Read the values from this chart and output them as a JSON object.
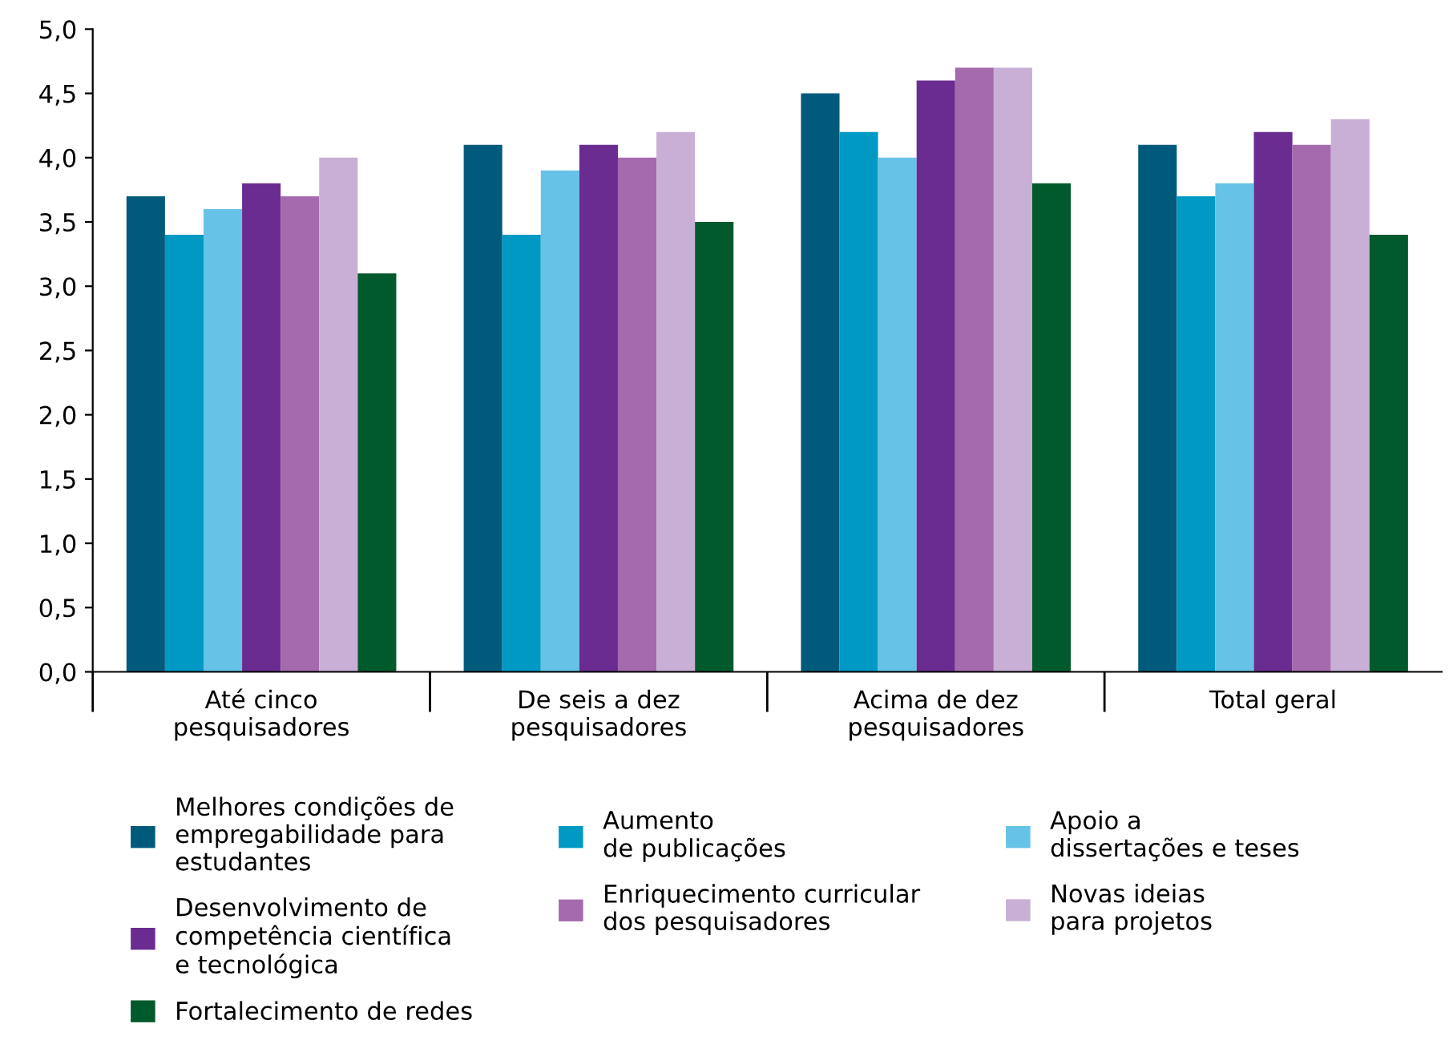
{
  "chart_data": {
    "type": "bar",
    "categories": [
      "Até cinco\npesquisadores",
      "De seis a dez\npesquisadores",
      "Acima de dez\npesquisadores",
      "Total geral"
    ],
    "series": [
      {
        "name": "Melhores condições de\nempregabilidade para\nestudantes",
        "color": "#005a7c",
        "values": [
          3.7,
          4.1,
          4.5,
          4.1
        ]
      },
      {
        "name": "Aumento\nde publicações",
        "color": "#0099c4",
        "values": [
          3.4,
          3.4,
          4.2,
          3.7
        ]
      },
      {
        "name": "Apoio a\ndissertações e teses",
        "color": "#66c2e6",
        "values": [
          3.6,
          3.9,
          4.0,
          3.8
        ]
      },
      {
        "name": "Desenvolvimento de\ncompetência científica\ne tecnológica",
        "color": "#6a2c91",
        "values": [
          3.8,
          4.1,
          4.6,
          4.2
        ]
      },
      {
        "name": "Enriquecimento curricular\ndos pesquisadores",
        "color": "#a56aad",
        "values": [
          3.7,
          4.0,
          4.7,
          4.1
        ]
      },
      {
        "name": "Novas ideias\npara projetos",
        "color": "#c9afd5",
        "values": [
          4.0,
          4.2,
          4.7,
          4.3
        ]
      },
      {
        "name": "Fortalecimento de redes",
        "color": "#005a2c",
        "values": [
          3.1,
          3.5,
          3.8,
          3.4
        ]
      }
    ],
    "ylim": [
      0,
      5
    ],
    "yticks": [
      {
        "value": 0,
        "label": "0,0"
      },
      {
        "value": 0.5,
        "label": "0,5"
      },
      {
        "value": 1,
        "label": "1,0"
      },
      {
        "value": 1.5,
        "label": "1,5"
      },
      {
        "value": 2,
        "label": "2,0"
      },
      {
        "value": 2.5,
        "label": "2,5"
      },
      {
        "value": 3,
        "label": "3,0"
      },
      {
        "value": 3.5,
        "label": "3,5"
      },
      {
        "value": 4,
        "label": "4,0"
      },
      {
        "value": 4.5,
        "label": "4,5"
      },
      {
        "value": 5,
        "label": "5,0"
      }
    ],
    "grid": false,
    "legend": "bottom"
  }
}
